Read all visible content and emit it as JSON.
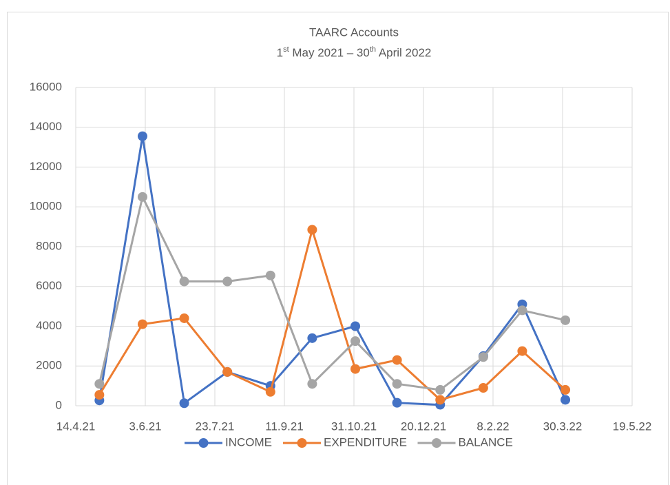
{
  "chart_data": {
    "type": "scatter-line",
    "title": "TAARC Accounts",
    "subtitle": "1st May 2021 – 30th April 2022",
    "x": [
      "1.5.21",
      "1.6.21",
      "1.7.21",
      "1.8.21",
      "1.9.21",
      "1.10.21",
      "1.11.21",
      "1.12.21",
      "1.1.22",
      "1.2.22",
      "1.3.22",
      "1.4.22"
    ],
    "series": [
      {
        "name": "INCOME",
        "color": "#4472c4",
        "values": [
          270,
          13550,
          130,
          1700,
          1000,
          3400,
          4000,
          150,
          50,
          2500,
          5100,
          300
        ]
      },
      {
        "name": "EXPENDITURE",
        "color": "#ed7d31",
        "values": [
          550,
          4100,
          4400,
          1700,
          700,
          8850,
          1850,
          2300,
          300,
          900,
          2750,
          800
        ]
      },
      {
        "name": "BALANCE",
        "color": "#a5a5a5",
        "values": [
          1100,
          10500,
          6250,
          6250,
          6550,
          1100,
          3250,
          1100,
          800,
          2450,
          4800,
          4300
        ]
      }
    ],
    "xlim": [
      "14.4.21",
      "19.5.22"
    ],
    "xticks": [
      "14.4.21",
      "3.6.21",
      "23.7.21",
      "11.9.21",
      "31.10.21",
      "20.12.21",
      "8.2.22",
      "30.3.22",
      "19.5.22"
    ],
    "ylim": [
      0,
      16000
    ],
    "yticks": [
      0,
      2000,
      4000,
      6000,
      8000,
      10000,
      12000,
      14000,
      16000
    ],
    "grid": true,
    "legend": "bottom"
  }
}
